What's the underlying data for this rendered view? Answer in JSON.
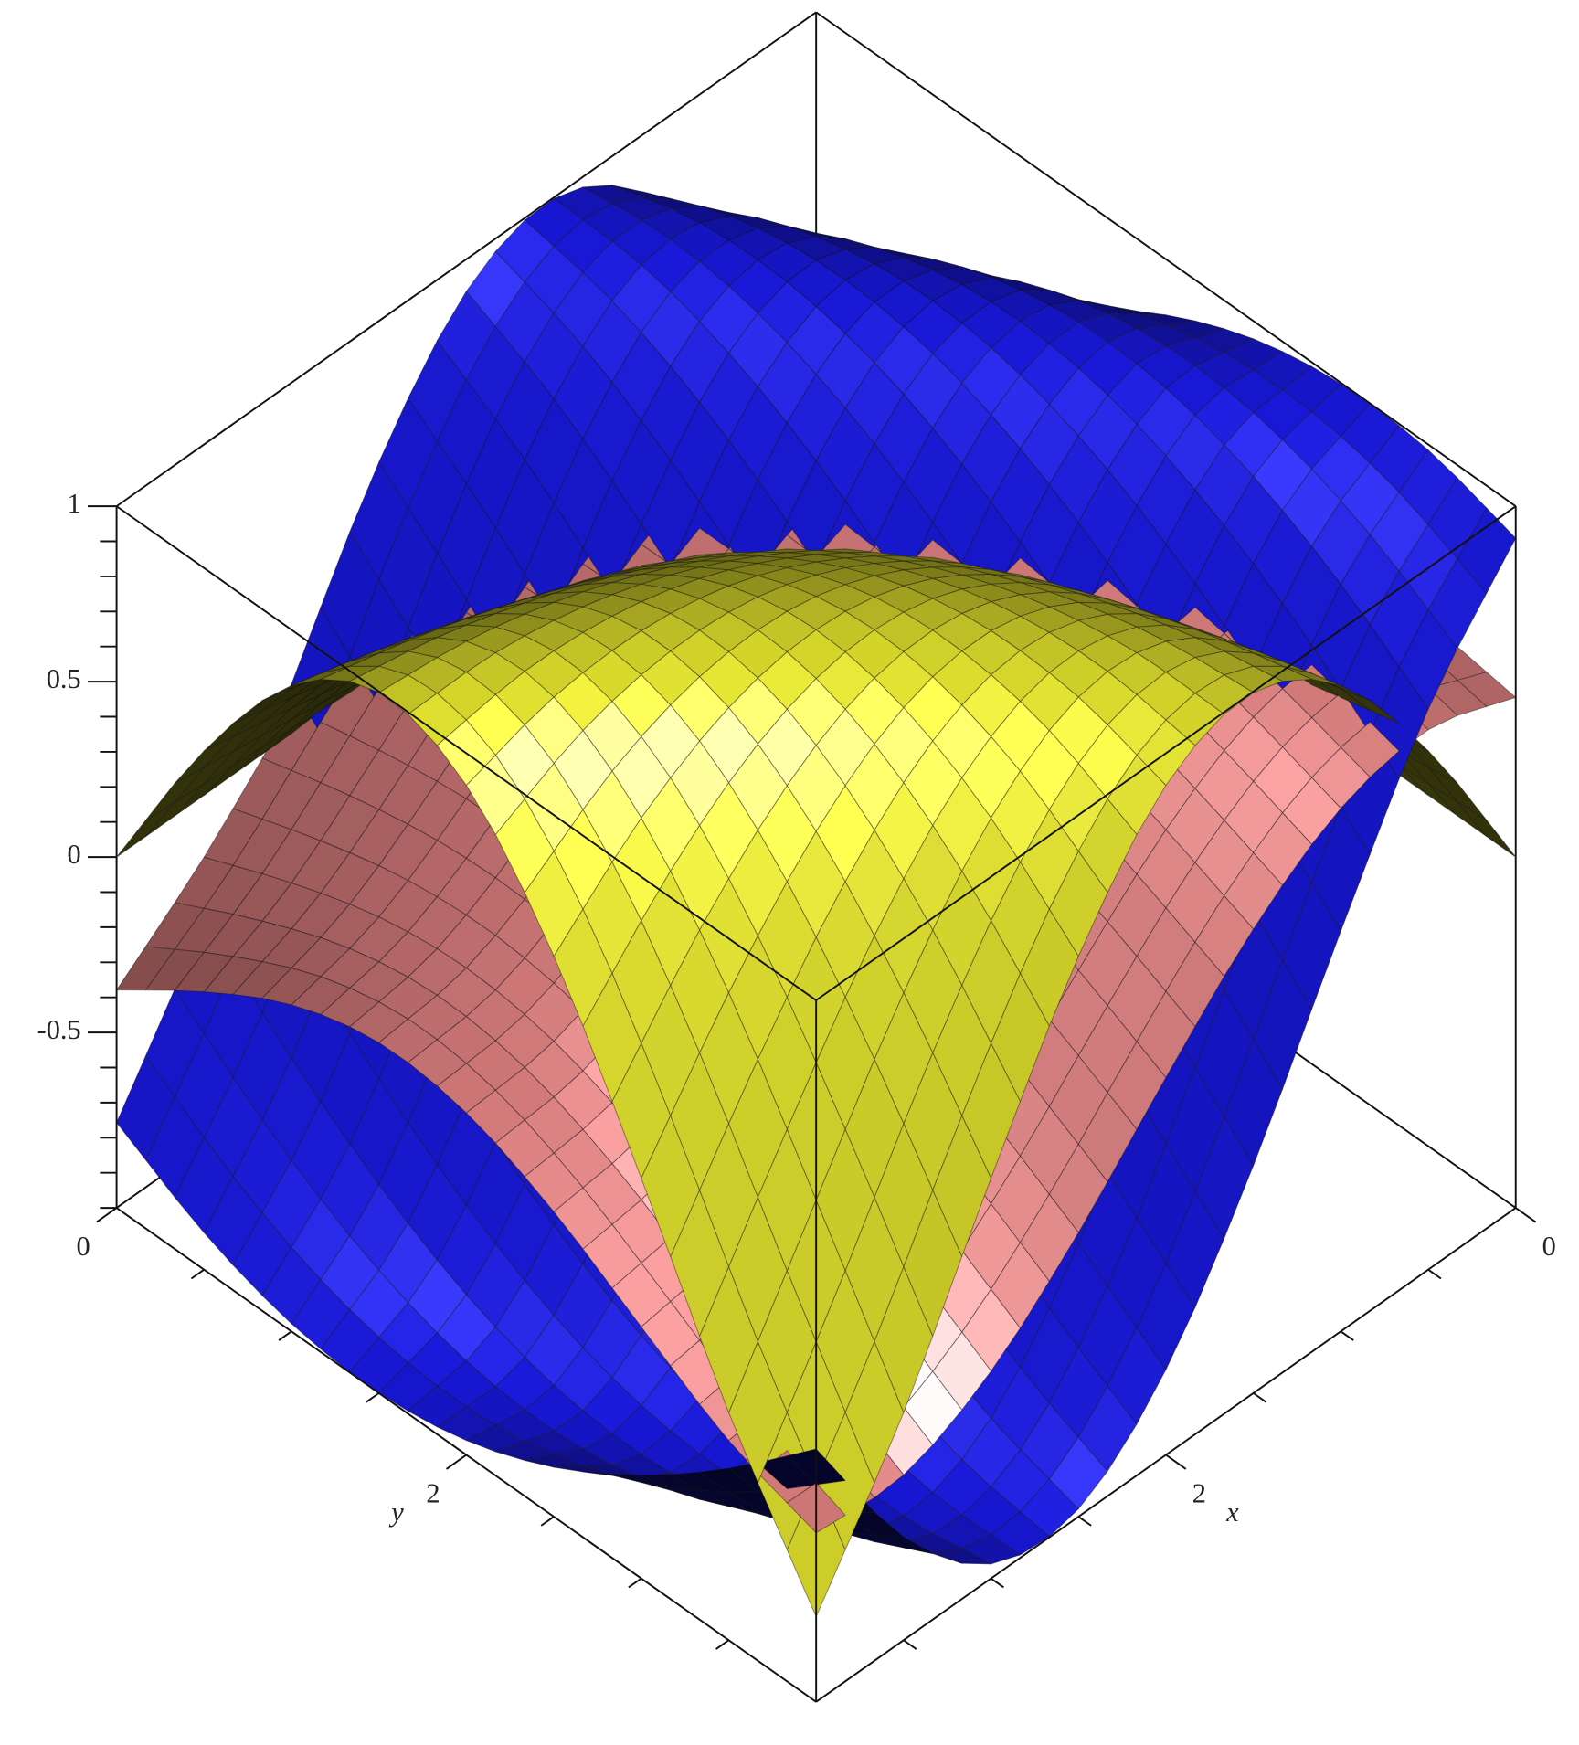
{
  "chart_data": {
    "type": "surface",
    "xlabel": "x",
    "ylabel": "y",
    "x": [
      0,
      0.5,
      1,
      1.5,
      2,
      2.5,
      3,
      3.5,
      4
    ],
    "y": [
      0,
      0.5,
      1,
      1.5,
      2,
      2.5,
      3,
      3.5,
      4
    ],
    "xlim": [
      0,
      4
    ],
    "ylim": [
      0,
      4
    ],
    "zlim": [
      -1,
      1
    ],
    "xticks": [
      0,
      2
    ],
    "yticks": [
      0,
      2
    ],
    "zticks": [
      1,
      0.5,
      0,
      -0.5
    ],
    "xminorticks": [
      0.5,
      1,
      1.5,
      2.5,
      3,
      3.5
    ],
    "yminorticks": [
      0.5,
      1,
      1.5,
      2.5,
      3,
      3.5
    ],
    "zminorticks": [
      -1,
      -0.9,
      -0.8,
      -0.7,
      -0.6,
      -0.4,
      -0.3,
      -0.2,
      -0.1,
      0.1,
      0.2,
      0.3,
      0.4,
      0.6,
      0.7,
      0.8,
      0.9
    ],
    "series": [
      {
        "color": "#1c1cff",
        "z": [
          [
            0,
            0.479,
            0.841,
            0.997,
            0.909,
            0.598,
            0.141,
            -0.351,
            -0.757
          ],
          [
            0.247,
            0.682,
            0.949,
            0.984,
            0.778,
            0.382,
            -0.108,
            -0.572,
            -0.895
          ],
          [
            0.479,
            0.841,
            0.997,
            0.909,
            0.598,
            0.141,
            -0.351,
            -0.757,
            -0.978
          ],
          [
            0.682,
            0.949,
            0.984,
            0.778,
            0.382,
            -0.108,
            -0.572,
            -0.895,
            -0.999
          ],
          [
            0.841,
            0.997,
            0.909,
            0.598,
            0.141,
            -0.351,
            -0.757,
            -0.978,
            -0.959
          ],
          [
            0.949,
            0.984,
            0.778,
            0.382,
            -0.108,
            -0.572,
            -0.895,
            -0.999,
            -0.859
          ],
          [
            0.997,
            0.909,
            0.598,
            0.141,
            -0.351,
            -0.757,
            -0.978,
            -0.959,
            -0.706
          ],
          [
            0.984,
            0.778,
            0.382,
            -0.108,
            -0.572,
            -0.895,
            -0.999,
            -0.859,
            -0.51
          ],
          [
            0.909,
            0.598,
            0.141,
            -0.351,
            -0.757,
            -0.978,
            -0.959,
            -0.706,
            -0.279
          ]
        ]
      },
      {
        "color": "#f08a8a",
        "z": [
          [
            0,
            0.24,
            0.421,
            0.499,
            0.455,
            0.299,
            0.071,
            -0.176,
            -0.379
          ],
          [
            0.124,
            0.372,
            0.537,
            0.585,
            0.513,
            0.345,
            0.129,
            -0.074,
            -0.208
          ],
          [
            0.24,
            0.483,
            0.622,
            0.638,
            0.539,
            0.363,
            0.166,
            0.005,
            -0.069
          ],
          [
            0.341,
            0.568,
            0.675,
            0.656,
            0.532,
            0.349,
            0.165,
            0.036,
            -0.001
          ],
          [
            0.421,
            0.622,
            0.694,
            0.64,
            0.491,
            0.299,
            0.12,
            0.003,
            -0.025
          ],
          [
            0.475,
            0.646,
            0.682,
            0.594,
            0.421,
            0.214,
            0.03,
            -0.092,
            -0.131
          ],
          [
            0.499,
            0.638,
            0.64,
            0.522,
            0.323,
            0.099,
            -0.1,
            -0.233,
            -0.283
          ],
          [
            0.492,
            0.601,
            0.575,
            0.43,
            0.206,
            -0.04,
            -0.253,
            -0.39,
            -0.431
          ],
          [
            0.455,
            0.539,
            0.491,
            0.323,
            0.076,
            -0.19,
            -0.409,
            -0.529,
            -0.518
          ]
        ]
      },
      {
        "color": "#ffff33",
        "z": [
          [
            0,
            0,
            0,
            0,
            0,
            0,
            0,
            0,
            0
          ],
          [
            0,
            0.062,
            0.125,
            0.186,
            0.247,
            0.307,
            0.366,
            0.424,
            0.479
          ],
          [
            0,
            0.125,
            0.247,
            0.366,
            0.479,
            0.585,
            0.682,
            0.767,
            0.841
          ],
          [
            0,
            0.186,
            0.366,
            0.533,
            0.682,
            0.806,
            0.902,
            0.967,
            0.997
          ],
          [
            0,
            0.247,
            0.479,
            0.682,
            0.841,
            0.949,
            0.997,
            0.984,
            0.909
          ],
          [
            0,
            0.307,
            0.585,
            0.806,
            0.949,
            1.0,
            0.954,
            0.816,
            0.598
          ],
          [
            0,
            0.366,
            0.682,
            0.902,
            0.997,
            0.954,
            0.778,
            0.494,
            0.141
          ],
          [
            0,
            0.424,
            0.767,
            0.967,
            0.984,
            0.816,
            0.494,
            0.079,
            -0.351
          ],
          [
            0,
            0.479,
            0.841,
            0.997,
            0.909,
            0.598,
            0.141,
            -0.351,
            -0.757
          ]
        ]
      }
    ]
  }
}
